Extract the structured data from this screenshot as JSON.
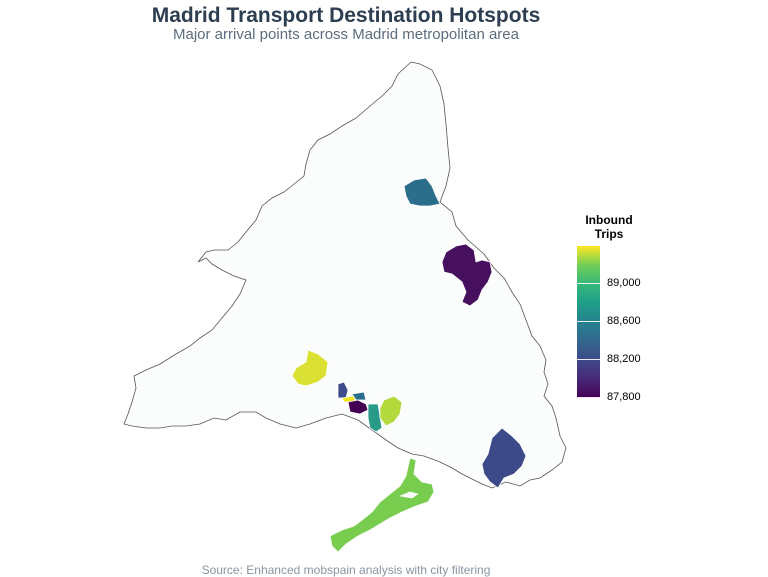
{
  "title": "Madrid Transport Destination Hotspots",
  "subtitle": "Major arrival points across Madrid metropolitan area",
  "caption": "Source: Enhanced mobspain analysis with city filtering",
  "legend": {
    "title_line1": "Inbound",
    "title_line2": "Trips",
    "min": 87750,
    "max": 89350,
    "ticks": [
      "89,000",
      "88,600",
      "88,200",
      "87,800"
    ],
    "tick_values": [
      89000,
      88600,
      88200,
      87800
    ],
    "colors": [
      "#440154",
      "#482777",
      "#3e4989",
      "#31688e",
      "#26828e",
      "#1f9e89",
      "#35b779",
      "#6ece58",
      "#fde725"
    ]
  },
  "colors": {
    "region_fill": "#fbfcfc",
    "region_stroke": "#555555",
    "title": "#2c3e50",
    "subtitle": "#5d6d7e",
    "caption": "#8795a1"
  }
}
